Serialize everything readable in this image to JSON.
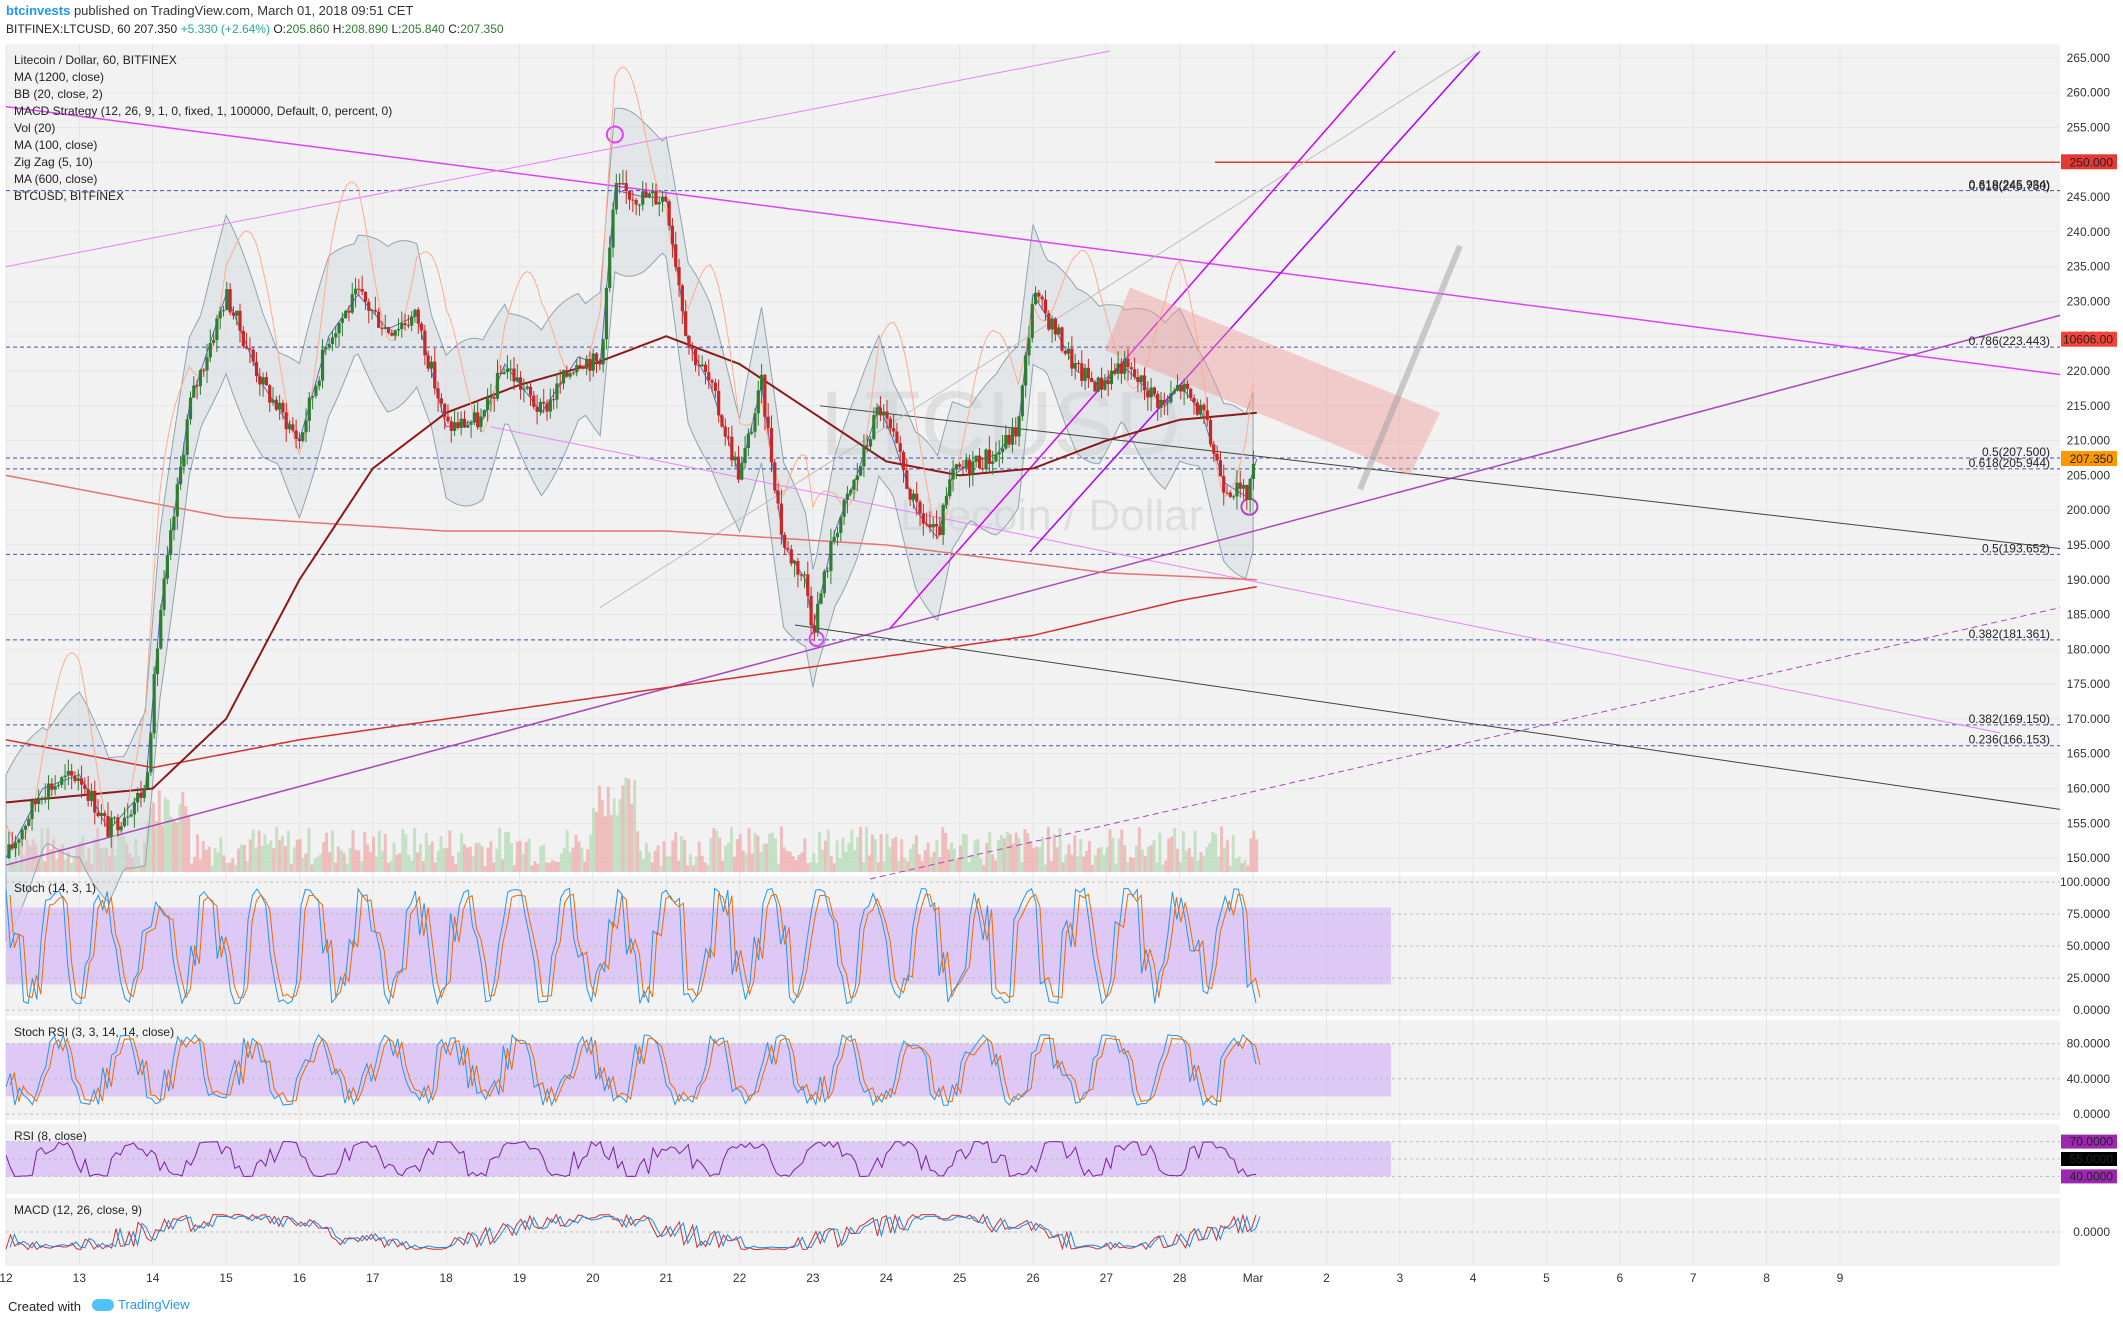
{
  "header": {
    "author": "btcinvests",
    "published": "published on TradingView.com, March 01, 2018 09:51 CET",
    "symbol_line": "BITFINEX:LTCUSD, 60",
    "last": "207.350",
    "change": "+5.330 (+2.64%)",
    "o_label": "O:",
    "o_value": "205.860",
    "h_label": "H:",
    "h_value": "208.890",
    "l_label": "L:",
    "l_value": "205.840",
    "c_label": "C:",
    "c_value": "207.350"
  },
  "legend": [
    "Litecoin / Dollar, 60, BITFINEX",
    "MA (1200, close)",
    "BB (20, close, 2)",
    "MACD Strategy (12, 26, 9, 1, 0, fixed, 1, 100000, Default, 0, percent, 0)",
    "Vol (20)",
    "MA (100, close)",
    "Zig Zag (5, 10)",
    "MA (600, close)",
    "BTCUSD, BITFINEX"
  ],
  "watermark": {
    "symbol": "LTCUSD",
    "name": "Litecoin / Dollar"
  },
  "colors": {
    "up": "#2e7d32",
    "down": "#c62828",
    "ma100": "#8b1a1a",
    "ma600": "#d32f2f",
    "fan": "#9c27b0",
    "fib": "#3f51b5",
    "bb": "#90a4ae",
    "zigzag": "#5c6bc0",
    "channel": "#e91e63",
    "stoch_band": "#d8bdf5"
  },
  "price_axis": {
    "ticks": [
      "265.000",
      "260.000",
      "255.000",
      "250.000",
      "245.000",
      "240.000",
      "235.000",
      "230.000",
      "225.000",
      "220.000",
      "215.000",
      "210.000",
      "205.000",
      "200.000",
      "195.000",
      "190.000",
      "185.000",
      "180.000",
      "175.000",
      "170.000",
      "165.000",
      "160.000",
      "155.000",
      "150.000"
    ],
    "badges": {
      "level_250": "250.000",
      "btc": "10606.00",
      "last": "207.350"
    }
  },
  "time_axis": [
    "12",
    "13",
    "14",
    "15",
    "16",
    "17",
    "18",
    "19",
    "20",
    "21",
    "22",
    "23",
    "24",
    "25",
    "26",
    "27",
    "28",
    "Mar",
    "2",
    "3",
    "4",
    "5",
    "6",
    "7",
    "8",
    "9"
  ],
  "fib_labels": [
    {
      "text": "0.618(245.934)",
      "color": "#9c27b0"
    },
    {
      "text": "0.618(245.750)",
      "color": "#3f51b5"
    },
    {
      "text": "0.786(223.443)",
      "color": "#3f51b5"
    },
    {
      "text": "0.5(207.500)",
      "color": "#9e9e9e"
    },
    {
      "text": "0.618(205.944)",
      "color": "#3f51b5"
    },
    {
      "text": "0.5(193.652)",
      "color": "#3f51b5"
    },
    {
      "text": "0.382(181.361)",
      "color": "#3f51b5"
    },
    {
      "text": "0.382(169.150)",
      "color": "#e91e63"
    },
    {
      "text": "0.236(166.153)",
      "color": "#3f51b5"
    }
  ],
  "panes": {
    "stoch": {
      "title": "Stoch (14, 3, 1)",
      "ticks": [
        "100.0000",
        "75.0000",
        "50.0000",
        "25.0000",
        "0.0000"
      ]
    },
    "stochrsi": {
      "title": "Stoch RSI (3, 3, 14, 14, close)",
      "ticks": [
        "80.0000",
        "40.0000",
        "0.0000"
      ]
    },
    "rsi": {
      "title": "RSI (8, close)",
      "ticks": [
        "70.0000",
        "55.0000",
        "40.0000"
      ]
    },
    "macd": {
      "title": "MACD (12, 26, close, 9)",
      "ticks": [
        "0.0000"
      ]
    }
  },
  "footer": {
    "created": "Created with",
    "brand": "TradingView"
  },
  "chart_data": {
    "type": "candlestick",
    "title": "Litecoin / Dollar, 60, BITFINEX",
    "ylim": [
      148,
      267
    ],
    "x_range": [
      "12",
      "9"
    ],
    "price_path": [
      {
        "day": 12.0,
        "price": 150
      },
      {
        "day": 12.5,
        "price": 160
      },
      {
        "day": 13.0,
        "price": 162
      },
      {
        "day": 13.4,
        "price": 154
      },
      {
        "day": 13.9,
        "price": 160
      },
      {
        "day": 14.1,
        "price": 185
      },
      {
        "day": 14.5,
        "price": 215
      },
      {
        "day": 15.0,
        "price": 231
      },
      {
        "day": 15.5,
        "price": 218
      },
      {
        "day": 16.0,
        "price": 210
      },
      {
        "day": 16.4,
        "price": 225
      },
      {
        "day": 16.8,
        "price": 231
      },
      {
        "day": 17.2,
        "price": 226
      },
      {
        "day": 17.6,
        "price": 228
      },
      {
        "day": 18.0,
        "price": 212
      },
      {
        "day": 18.5,
        "price": 213
      },
      {
        "day": 18.8,
        "price": 221
      },
      {
        "day": 19.3,
        "price": 214
      },
      {
        "day": 19.8,
        "price": 222
      },
      {
        "day": 20.1,
        "price": 221
      },
      {
        "day": 20.3,
        "price": 246
      },
      {
        "day": 20.7,
        "price": 245
      },
      {
        "day": 21.0,
        "price": 245
      },
      {
        "day": 21.3,
        "price": 224
      },
      {
        "day": 21.6,
        "price": 218
      },
      {
        "day": 22.0,
        "price": 205
      },
      {
        "day": 22.3,
        "price": 218
      },
      {
        "day": 22.6,
        "price": 195
      },
      {
        "day": 22.9,
        "price": 190
      },
      {
        "day": 23.0,
        "price": 183
      },
      {
        "day": 23.3,
        "price": 197
      },
      {
        "day": 23.6,
        "price": 205
      },
      {
        "day": 23.9,
        "price": 215
      },
      {
        "day": 24.1,
        "price": 210
      },
      {
        "day": 24.4,
        "price": 200
      },
      {
        "day": 24.7,
        "price": 196
      },
      {
        "day": 24.9,
        "price": 205
      },
      {
        "day": 25.2,
        "price": 207
      },
      {
        "day": 25.5,
        "price": 208
      },
      {
        "day": 25.8,
        "price": 212
      },
      {
        "day": 26.0,
        "price": 231
      },
      {
        "day": 26.3,
        "price": 226
      },
      {
        "day": 26.6,
        "price": 220
      },
      {
        "day": 26.9,
        "price": 218
      },
      {
        "day": 27.2,
        "price": 221
      },
      {
        "day": 27.5,
        "price": 218
      },
      {
        "day": 27.8,
        "price": 215
      },
      {
        "day": 28.0,
        "price": 218
      },
      {
        "day": 28.3,
        "price": 214
      },
      {
        "day": 28.6,
        "price": 204
      },
      {
        "day": 28.9,
        "price": 202
      },
      {
        "day": 29.05,
        "price": 207.35
      }
    ],
    "bb_width": 8,
    "ma100_path": [
      {
        "day": 12.0,
        "price": 158
      },
      {
        "day": 14.0,
        "price": 160
      },
      {
        "day": 15.0,
        "price": 170
      },
      {
        "day": 16.0,
        "price": 190
      },
      {
        "day": 17.0,
        "price": 206
      },
      {
        "day": 18.0,
        "price": 214
      },
      {
        "day": 19.0,
        "price": 218
      },
      {
        "day": 20.0,
        "price": 221
      },
      {
        "day": 21.0,
        "price": 225
      },
      {
        "day": 22.0,
        "price": 221
      },
      {
        "day": 23.0,
        "price": 214
      },
      {
        "day": 24.0,
        "price": 207
      },
      {
        "day": 25.0,
        "price": 205
      },
      {
        "day": 26.0,
        "price": 206
      },
      {
        "day": 27.0,
        "price": 210
      },
      {
        "day": 28.0,
        "price": 213
      },
      {
        "day": 29.05,
        "price": 214
      }
    ],
    "ma600_path": [
      {
        "day": 12.0,
        "price": 167
      },
      {
        "day": 14.0,
        "price": 163
      },
      {
        "day": 16.0,
        "price": 167
      },
      {
        "day": 18.0,
        "price": 170
      },
      {
        "day": 20.0,
        "price": 173
      },
      {
        "day": 22.0,
        "price": 176
      },
      {
        "day": 24.0,
        "price": 179
      },
      {
        "day": 26.0,
        "price": 182
      },
      {
        "day": 28.0,
        "price": 187
      },
      {
        "day": 29.05,
        "price": 189
      }
    ],
    "ma1200_path": [
      {
        "day": 12.0,
        "price": 205
      },
      {
        "day": 15.0,
        "price": 199
      },
      {
        "day": 18.0,
        "price": 197
      },
      {
        "day": 21.0,
        "price": 197
      },
      {
        "day": 24.0,
        "price": 195
      },
      {
        "day": 27.0,
        "price": 191
      },
      {
        "day": 29.05,
        "price": 190
      }
    ],
    "horizontal_levels": [
      245.934,
      223.443,
      207.5,
      205.944,
      193.652,
      181.361,
      169.15,
      166.153
    ],
    "red_level": 250.0,
    "last_price": 207.35
  }
}
